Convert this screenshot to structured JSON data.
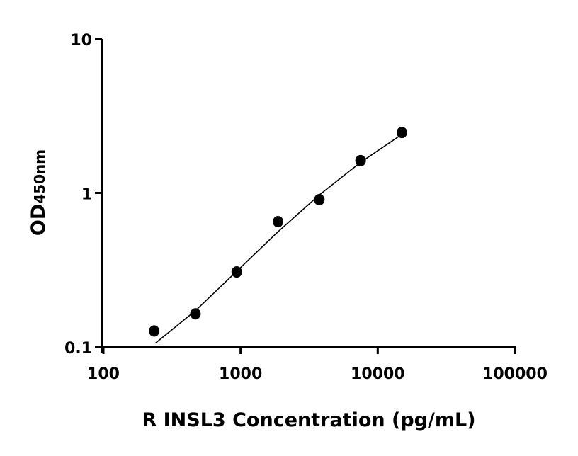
{
  "chart_data": {
    "type": "scatter",
    "title": "",
    "xlabel": "R INSL3 Concentration (pg/mL)",
    "ylabel_main": "OD",
    "ylabel_sub": "450nm",
    "xscale": "log",
    "yscale": "log",
    "xlim": [
      100,
      100000
    ],
    "ylim": [
      0.1,
      10
    ],
    "xticks": [
      "100",
      "1000",
      "10000",
      "100000"
    ],
    "yticks": [
      "0.1",
      "1",
      "10"
    ],
    "grid": false,
    "legend": "none",
    "points": {
      "x": [
        234.4,
        468.75,
        937.5,
        1875,
        3750,
        7500,
        15000
      ],
      "y": [
        0.127,
        0.164,
        0.307,
        0.651,
        0.904,
        1.62,
        2.47
      ]
    },
    "fit": {
      "x": [
        240,
        468.75,
        937.5,
        1875,
        3750,
        7500,
        15000
      ],
      "y": [
        0.106,
        0.172,
        0.31,
        0.56,
        0.97,
        1.58,
        2.4
      ]
    },
    "colors": {
      "points": "#000000",
      "line": "#000000"
    }
  }
}
